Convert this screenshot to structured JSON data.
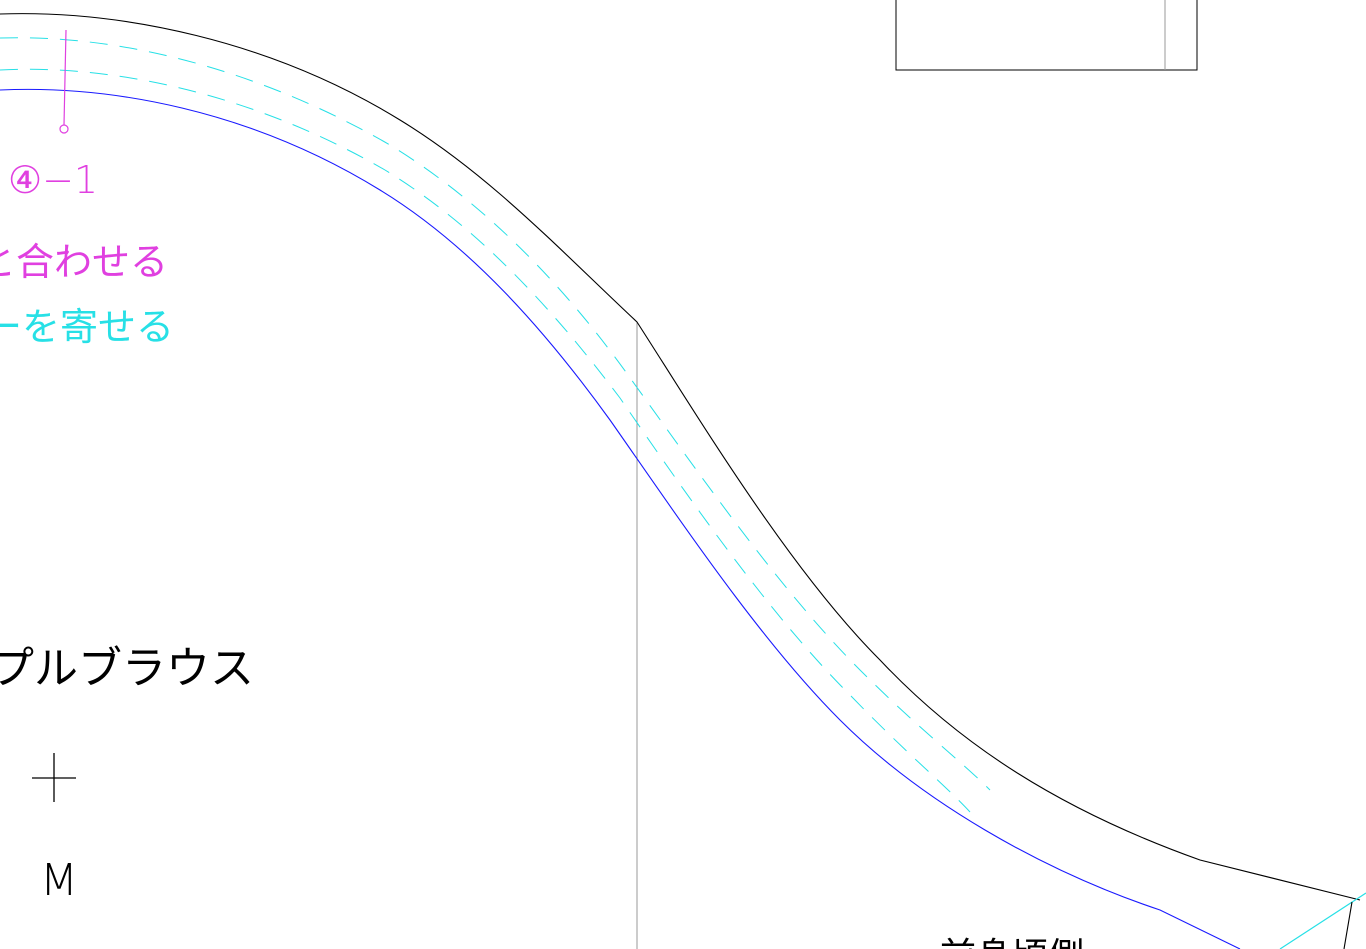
{
  "diagram": {
    "labels": {
      "notch_id": "④−1",
      "magenta_instruction": "と合わせる",
      "cyan_instruction": "ーを寄せる",
      "garment_name": "プルブラウス",
      "size": "M",
      "bottom_right_partial": "前身頃側"
    },
    "colors": {
      "outline": "#000000",
      "stitch_line": "#1a1aff",
      "dashed_guides": "#27e0e6",
      "magenta_marks": "#e040e0",
      "grain_line": "#9a9a9a"
    },
    "symbols": {
      "cross_mark": "cross-mark"
    }
  }
}
